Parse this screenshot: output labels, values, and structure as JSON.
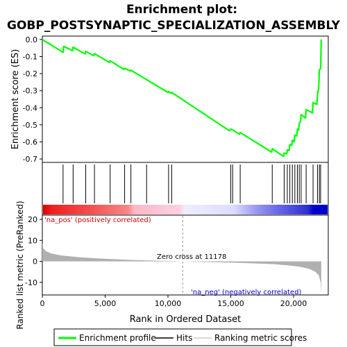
{
  "chart_data": {
    "type": "line",
    "title_line1": "Enrichment plot:",
    "title_line2": "GOBP_POSTSYNAPTIC_SPECIALIZATION_ASSEMBLY",
    "top_panel": {
      "ylabel": "Enrichment score (ES)",
      "ylim": [
        -0.72,
        0.02
      ],
      "yticks": [
        0.0,
        -0.1,
        -0.2,
        -0.3,
        -0.4,
        -0.5,
        -0.6,
        -0.7
      ],
      "ytick_labels": [
        "0.0",
        "-0.1",
        "-0.2",
        "-0.3",
        "-0.4",
        "-0.5",
        "-0.6",
        "-0.7"
      ],
      "series_name": "Enrichment profile",
      "line_color": "#00ff00",
      "points": [
        [
          0,
          0.0
        ],
        [
          1650,
          -0.075
        ],
        [
          1700,
          -0.04
        ],
        [
          2400,
          -0.065
        ],
        [
          2450,
          -0.045
        ],
        [
          3400,
          -0.085
        ],
        [
          3450,
          -0.07
        ],
        [
          4100,
          -0.095
        ],
        [
          4150,
          -0.083
        ],
        [
          5350,
          -0.135
        ],
        [
          5400,
          -0.125
        ],
        [
          6500,
          -0.175
        ],
        [
          6550,
          -0.168
        ],
        [
          7000,
          -0.185
        ],
        [
          7050,
          -0.18
        ],
        [
          8300,
          -0.235
        ],
        [
          10000,
          -0.31
        ],
        [
          10050,
          -0.305
        ],
        [
          10250,
          -0.315
        ],
        [
          10300,
          -0.31
        ],
        [
          14900,
          -0.535
        ],
        [
          15000,
          -0.525
        ],
        [
          15150,
          -0.53
        ],
        [
          15700,
          -0.555
        ],
        [
          15750,
          -0.545
        ],
        [
          18250,
          -0.66
        ],
        [
          18300,
          -0.64
        ],
        [
          19200,
          -0.685
        ],
        [
          19250,
          -0.665
        ],
        [
          19450,
          -0.67
        ],
        [
          19500,
          -0.645
        ],
        [
          19650,
          -0.65
        ],
        [
          19700,
          -0.615
        ],
        [
          19850,
          -0.62
        ],
        [
          19900,
          -0.59
        ],
        [
          20050,
          -0.6
        ],
        [
          20100,
          -0.56
        ],
        [
          20250,
          -0.565
        ],
        [
          20300,
          -0.525
        ],
        [
          20400,
          -0.53
        ],
        [
          20450,
          -0.49
        ],
        [
          20550,
          -0.48
        ],
        [
          20600,
          -0.44
        ],
        [
          20950,
          -0.46
        ],
        [
          21000,
          -0.41
        ],
        [
          21500,
          -0.43
        ],
        [
          21550,
          -0.37
        ],
        [
          21850,
          -0.38
        ],
        [
          21900,
          -0.33
        ],
        [
          21950,
          -0.3
        ],
        [
          22000,
          -0.29
        ],
        [
          22050,
          -0.18
        ],
        [
          22150,
          -0.17
        ],
        [
          22200,
          0.0
        ]
      ]
    },
    "hits_panel": {
      "hits": [
        1650,
        2450,
        3450,
        4150,
        5400,
        6550,
        7050,
        8300,
        10050,
        10300,
        15000,
        15150,
        15750,
        18300,
        19250,
        19500,
        19700,
        19900,
        20100,
        20300,
        20450,
        20600,
        21000,
        21550,
        21900,
        22050,
        22150
      ],
      "hit_color": "#000000"
    },
    "ranking_panel": {
      "ylabel": "Ranked list metric (PreRanked)",
      "ylim": [
        -16,
        22
      ],
      "yticks": [
        20,
        10,
        0,
        -10
      ],
      "ytick_labels": [
        "20",
        "10",
        "0",
        "-10"
      ],
      "series_name": "Ranking metric scores",
      "fill_color": "#b0b0b0",
      "zero_cross_label": "Zero cross at 11178",
      "zero_cross": 11178,
      "pos_label": "'na_pos' (positively correlated)",
      "neg_label": "'na_neg' (negatively correlated)",
      "pos_color": "#cc0000",
      "neg_color": "#0000cc",
      "curve": [
        [
          0,
          8.5
        ],
        [
          80,
          6.2
        ],
        [
          300,
          4.8
        ],
        [
          700,
          3.8
        ],
        [
          1500,
          2.8
        ],
        [
          3000,
          1.9
        ],
        [
          5000,
          1.2
        ],
        [
          7000,
          0.7
        ],
        [
          9000,
          0.35
        ],
        [
          11178,
          0.0
        ],
        [
          13000,
          -0.3
        ],
        [
          15000,
          -0.6
        ],
        [
          17000,
          -1.0
        ],
        [
          18500,
          -1.4
        ],
        [
          19500,
          -1.9
        ],
        [
          20500,
          -2.6
        ],
        [
          21200,
          -3.5
        ],
        [
          21700,
          -4.8
        ],
        [
          22000,
          -6.5
        ],
        [
          22150,
          -10.0
        ],
        [
          22200,
          -15.5
        ]
      ]
    },
    "xaxis": {
      "xlabel": "Rank in Ordered Dataset",
      "xlim": [
        0,
        22760
      ],
      "xticks": [
        0,
        5000,
        10000,
        15000,
        20000
      ],
      "xtick_labels": [
        "0",
        "5,000",
        "10,000",
        "15,000",
        "20,000"
      ]
    },
    "legend": [
      {
        "label": "Enrichment profile",
        "color": "#00ff00"
      },
      {
        "label": "Hits",
        "color": "#000000"
      },
      {
        "label": "Ranking metric scores",
        "color": "#cccccc"
      }
    ]
  }
}
